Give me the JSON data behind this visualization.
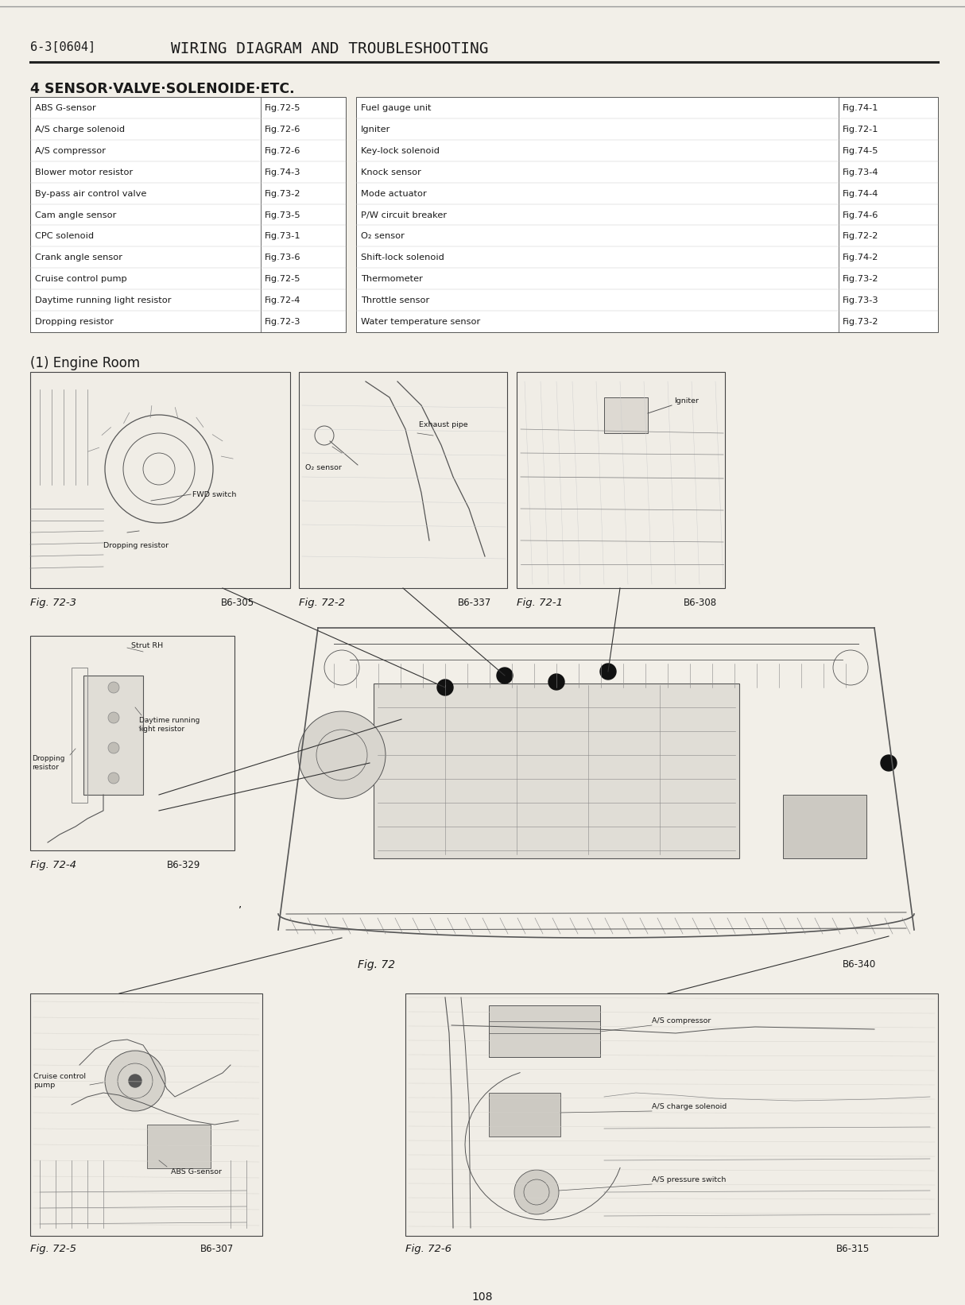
{
  "page_bg": "#f2efe8",
  "header_text": "6-3[0604]",
  "header_title": "WIRING DIAGRAM AND TROUBLESHOOTING",
  "section_title": "4 SENSOR·VALVE·SOLENOIDE·ETC.",
  "left_table": [
    [
      "ABS G-sensor",
      "Fig.72-5"
    ],
    [
      "A/S charge solenoid",
      "Fig.72-6"
    ],
    [
      "A/S compressor",
      "Fig.72-6"
    ],
    [
      "Blower motor resistor",
      "Fig.74-3"
    ],
    [
      "By-pass air control valve",
      "Fig.73-2"
    ],
    [
      "Cam angle sensor",
      "Fig.73-5"
    ],
    [
      "CPC solenoid",
      "Fig.73-1"
    ],
    [
      "Crank angle sensor",
      "Fig.73-6"
    ],
    [
      "Cruise control pump",
      "Fig.72-5"
    ],
    [
      "Daytime running light resistor",
      "Fig.72-4"
    ],
    [
      "Dropping resistor",
      "Fig.72-3"
    ]
  ],
  "right_table": [
    [
      "Fuel gauge unit",
      "Fig.74-1"
    ],
    [
      "Igniter",
      "Fig.72-1"
    ],
    [
      "Key-lock solenoid",
      "Fig.74-5"
    ],
    [
      "Knock sensor",
      "Fig.73-4"
    ],
    [
      "Mode actuator",
      "Fig.74-4"
    ],
    [
      "P/W circuit breaker",
      "Fig.74-6"
    ],
    [
      "O₂ sensor",
      "Fig.72-2"
    ],
    [
      "Shift-lock solenoid",
      "Fig.74-2"
    ],
    [
      "Thermometer",
      "Fig.73-2"
    ],
    [
      "Throttle sensor",
      "Fig.73-3"
    ],
    [
      "Water temperature sensor",
      "Fig.73-2"
    ]
  ],
  "engine_room_title": "(1) Engine Room",
  "page_number": "108",
  "text_color": "#1a1a1a",
  "sketch_color": "#555555",
  "sketch_light": "#888888",
  "box_fill": "#f0ede6",
  "box_edge": "#444444"
}
